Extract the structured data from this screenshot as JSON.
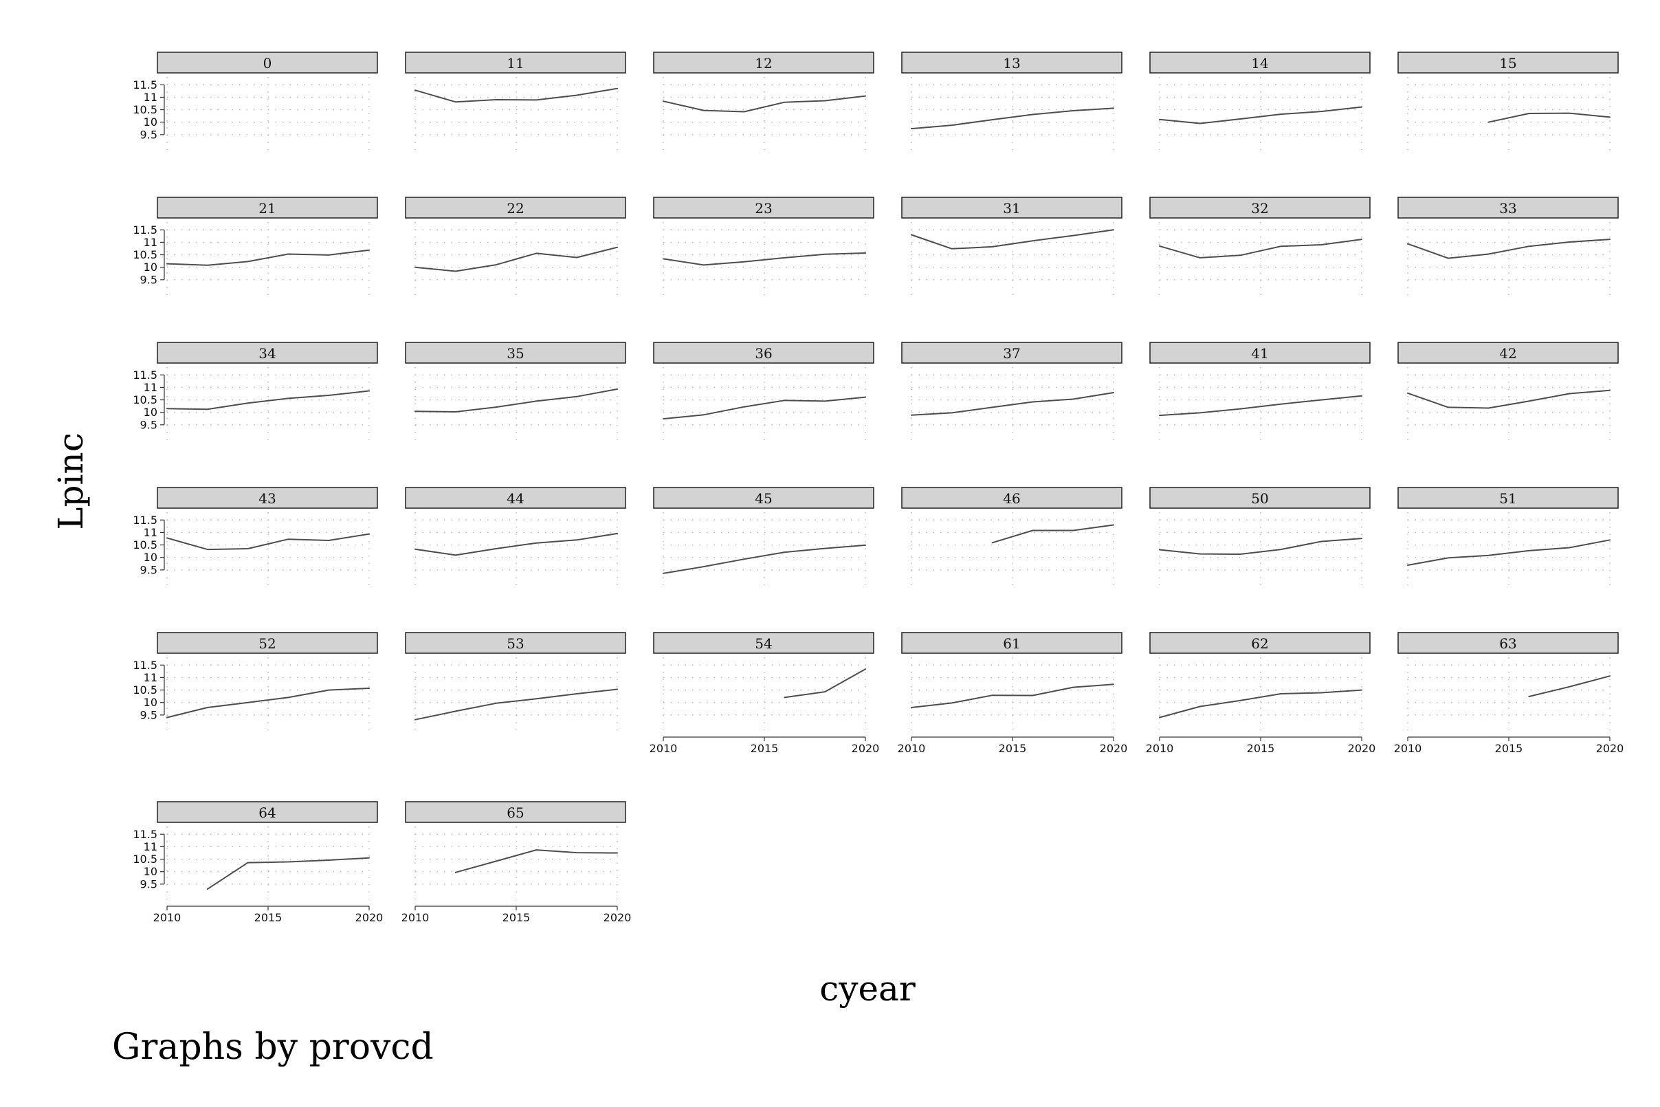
{
  "chart_data": {
    "type": "line",
    "facet_by": "provcd",
    "xlabel": "cyear",
    "ylabel": "Lpinc",
    "note": "Graphs by provcd",
    "xlim": [
      2010,
      2020
    ],
    "ylim": [
      9.0,
      11.7
    ],
    "x_ticks": [
      2010,
      2015,
      2020
    ],
    "y_ticks": [
      9.5,
      10,
      10.5,
      11,
      11.5
    ],
    "y_tick_labels": [
      "9.5",
      "10",
      "10.5",
      "11",
      "11.5"
    ],
    "x_tick_labels": [
      "2010",
      "2015",
      "2020"
    ],
    "grid": true,
    "panels": [
      {
        "label": "0",
        "x": [],
        "y": []
      },
      {
        "label": "11",
        "x": [
          2010,
          2012,
          2014,
          2016,
          2018,
          2020
        ],
        "y": [
          11.28,
          10.81,
          10.9,
          10.89,
          11.08,
          11.35
        ]
      },
      {
        "label": "12",
        "x": [
          2010,
          2012,
          2014,
          2016,
          2018,
          2020
        ],
        "y": [
          10.84,
          10.47,
          10.42,
          10.8,
          10.86,
          11.05
        ]
      },
      {
        "label": "13",
        "x": [
          2010,
          2012,
          2014,
          2016,
          2018,
          2020
        ],
        "y": [
          9.74,
          9.88,
          10.1,
          10.31,
          10.46,
          10.56
        ]
      },
      {
        "label": "14",
        "x": [
          2010,
          2012,
          2014,
          2016,
          2018,
          2020
        ],
        "y": [
          10.11,
          9.95,
          10.13,
          10.32,
          10.43,
          10.61
        ]
      },
      {
        "label": "15",
        "x": [
          2014,
          2016,
          2018,
          2020
        ],
        "y": [
          10.0,
          10.35,
          10.36,
          10.2
        ]
      },
      {
        "label": "21",
        "x": [
          2010,
          2012,
          2014,
          2016,
          2018,
          2020
        ],
        "y": [
          10.14,
          10.08,
          10.23,
          10.53,
          10.49,
          10.69
        ]
      },
      {
        "label": "22",
        "x": [
          2010,
          2012,
          2014,
          2016,
          2018,
          2020
        ],
        "y": [
          10.0,
          9.84,
          10.1,
          10.56,
          10.39,
          10.8
        ]
      },
      {
        "label": "23",
        "x": [
          2010,
          2012,
          2014,
          2016,
          2018,
          2020
        ],
        "y": [
          10.34,
          10.09,
          10.22,
          10.38,
          10.52,
          10.57
        ]
      },
      {
        "label": "31",
        "x": [
          2010,
          2012,
          2014,
          2016,
          2018,
          2020
        ],
        "y": [
          11.3,
          10.74,
          10.82,
          11.06,
          11.27,
          11.5
        ]
      },
      {
        "label": "32",
        "x": [
          2010,
          2012,
          2014,
          2016,
          2018,
          2020
        ],
        "y": [
          10.85,
          10.38,
          10.48,
          10.84,
          10.9,
          11.12
        ]
      },
      {
        "label": "33",
        "x": [
          2010,
          2012,
          2014,
          2016,
          2018,
          2020
        ],
        "y": [
          10.94,
          10.36,
          10.53,
          10.84,
          11.01,
          11.12
        ]
      },
      {
        "label": "34",
        "x": [
          2010,
          2012,
          2014,
          2016,
          2018,
          2020
        ],
        "y": [
          10.15,
          10.12,
          10.37,
          10.56,
          10.68,
          10.86
        ]
      },
      {
        "label": "35",
        "x": [
          2010,
          2012,
          2014,
          2016,
          2018,
          2020
        ],
        "y": [
          10.04,
          10.02,
          10.21,
          10.45,
          10.63,
          10.93
        ]
      },
      {
        "label": "36",
        "x": [
          2010,
          2012,
          2014,
          2016,
          2018,
          2020
        ],
        "y": [
          9.74,
          9.9,
          10.22,
          10.48,
          10.45,
          10.61
        ]
      },
      {
        "label": "37",
        "x": [
          2010,
          2012,
          2014,
          2016,
          2018,
          2020
        ],
        "y": [
          9.89,
          9.98,
          10.2,
          10.42,
          10.53,
          10.79
        ]
      },
      {
        "label": "41",
        "x": [
          2010,
          2012,
          2014,
          2016,
          2018,
          2020
        ],
        "y": [
          9.88,
          9.98,
          10.14,
          10.33,
          10.5,
          10.66
        ]
      },
      {
        "label": "42",
        "x": [
          2010,
          2012,
          2014,
          2016,
          2018,
          2020
        ],
        "y": [
          10.77,
          10.2,
          10.17,
          10.45,
          10.75,
          10.88
        ]
      },
      {
        "label": "43",
        "x": [
          2010,
          2012,
          2014,
          2016,
          2018,
          2020
        ],
        "y": [
          10.78,
          10.32,
          10.35,
          10.73,
          10.68,
          10.94
        ]
      },
      {
        "label": "44",
        "x": [
          2010,
          2012,
          2014,
          2016,
          2018,
          2020
        ],
        "y": [
          10.33,
          10.09,
          10.35,
          10.58,
          10.7,
          10.96
        ]
      },
      {
        "label": "45",
        "x": [
          2010,
          2012,
          2014,
          2016,
          2018,
          2020
        ],
        "y": [
          9.36,
          9.63,
          9.93,
          10.21,
          10.36,
          10.49
        ]
      },
      {
        "label": "46",
        "x": [
          2014,
          2016,
          2018,
          2020
        ],
        "y": [
          10.59,
          11.08,
          11.08,
          11.3
        ]
      },
      {
        "label": "50",
        "x": [
          2010,
          2012,
          2014,
          2016,
          2018,
          2020
        ],
        "y": [
          10.31,
          10.14,
          10.13,
          10.32,
          10.64,
          10.76
        ]
      },
      {
        "label": "51",
        "x": [
          2010,
          2012,
          2014,
          2016,
          2018,
          2020
        ],
        "y": [
          9.69,
          9.98,
          10.08,
          10.27,
          10.39,
          10.7
        ]
      },
      {
        "label": "52",
        "x": [
          2010,
          2012,
          2014,
          2016,
          2018,
          2020
        ],
        "y": [
          9.4,
          9.8,
          10.0,
          10.2,
          10.5,
          10.57
        ]
      },
      {
        "label": "53",
        "x": [
          2010,
          2012,
          2014,
          2016,
          2018,
          2020
        ],
        "y": [
          9.31,
          9.65,
          9.97,
          10.15,
          10.35,
          10.53
        ]
      },
      {
        "label": "54",
        "x": [
          2016,
          2018,
          2020
        ],
        "y": [
          10.2,
          10.43,
          11.34
        ]
      },
      {
        "label": "61",
        "x": [
          2010,
          2012,
          2014,
          2016,
          2018,
          2020
        ],
        "y": [
          9.8,
          9.98,
          10.29,
          10.28,
          10.61,
          10.73
        ]
      },
      {
        "label": "62",
        "x": [
          2010,
          2012,
          2014,
          2016,
          2018,
          2020
        ],
        "y": [
          9.4,
          9.84,
          10.08,
          10.35,
          10.39,
          10.5
        ]
      },
      {
        "label": "63",
        "x": [
          2016,
          2018,
          2020
        ],
        "y": [
          10.24,
          10.63,
          11.06
        ]
      },
      {
        "label": "64",
        "x": [
          2012,
          2014,
          2016,
          2018,
          2020
        ],
        "y": [
          9.3,
          10.36,
          10.39,
          10.46,
          10.55
        ]
      },
      {
        "label": "65",
        "x": [
          2012,
          2014,
          2016,
          2018,
          2020
        ],
        "y": [
          9.97,
          10.42,
          10.87,
          10.76,
          10.75
        ]
      }
    ],
    "colors": {
      "line": "#4d4d4d",
      "strip": "#d3d3d3",
      "grid": "#b5b5b5"
    }
  }
}
